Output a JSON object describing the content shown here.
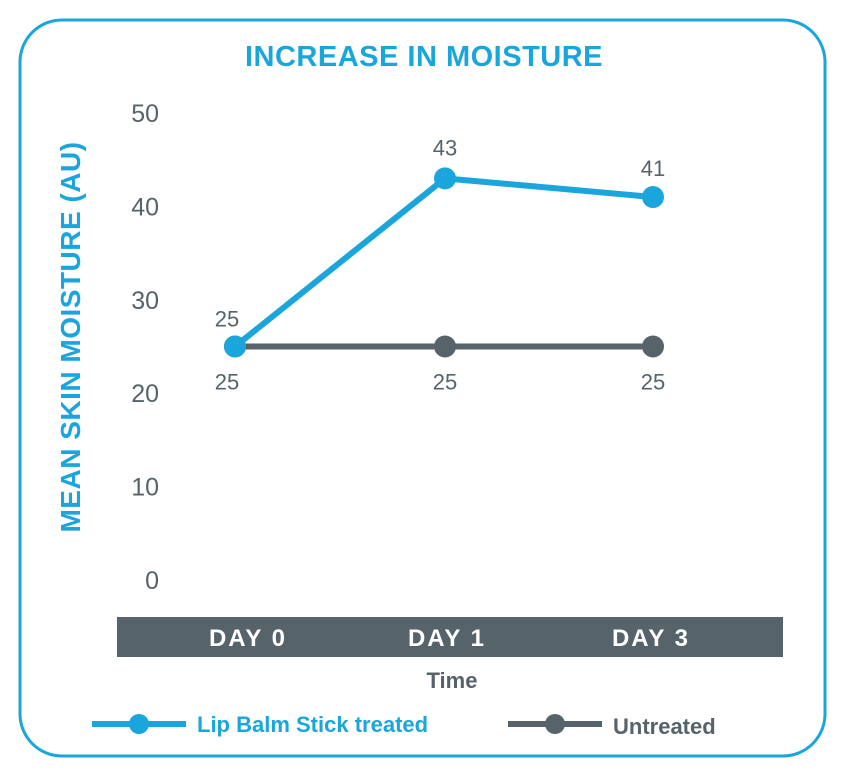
{
  "chart_data": {
    "type": "line",
    "title": "INCREASE IN MOISTURE",
    "xlabel": "Time",
    "ylabel": "MEAN SKIN MOISTURE (AU)",
    "categories": [
      "DAY 0",
      "DAY 1",
      "DAY 3"
    ],
    "y_ticks": [
      "50",
      "40",
      "30",
      "20",
      "10",
      "0"
    ],
    "ylim": [
      0,
      50
    ],
    "grid": false,
    "legend_placement": "bottom",
    "series": [
      {
        "name": "Lip Balm Stick treated",
        "values": [
          25,
          43,
          41
        ],
        "labels": [
          "25",
          "43",
          "41"
        ],
        "color": "#1aa6dc"
      },
      {
        "name": "Untreated",
        "values": [
          25,
          25,
          25
        ],
        "labels": [
          "25",
          "25",
          "25"
        ],
        "color": "#56636a"
      }
    ],
    "colors": {
      "accent": "#1aa6dc",
      "dark": "#56636a",
      "frame": "#1aa6dc"
    }
  }
}
